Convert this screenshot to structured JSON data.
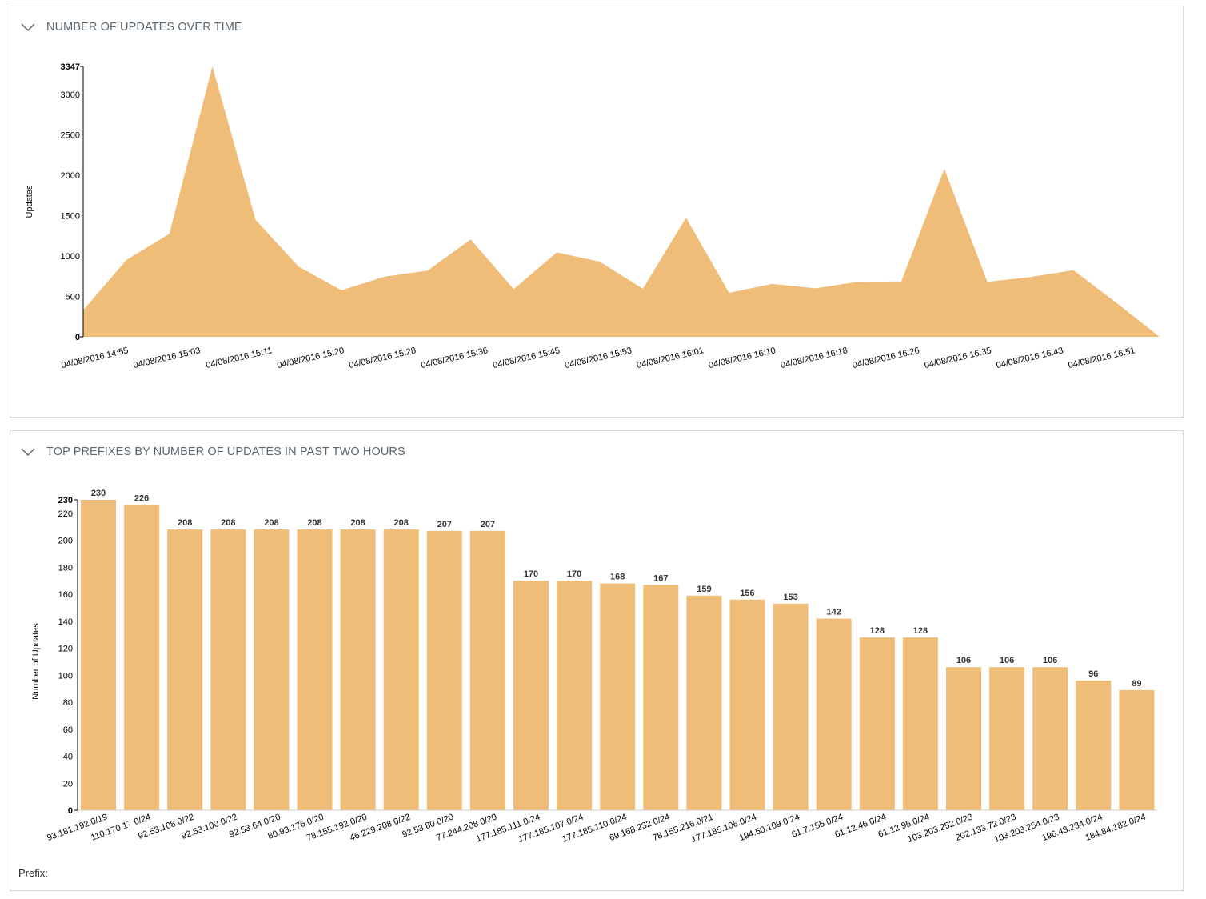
{
  "panels": [
    {
      "title": "NUMBER OF UPDATES OVER TIME",
      "chevron_icon": "chevron-down-icon"
    },
    {
      "title": "TOP PREFIXES BY NUMBER OF UPDATES IN PAST TWO HOURS",
      "chevron_icon": "chevron-down-icon",
      "footer_label": "Prefix:"
    }
  ],
  "colors": {
    "fill": "#efbd78",
    "axis": "#000000",
    "title": "#5b6770"
  },
  "chart_data": [
    {
      "type": "area",
      "title": "",
      "ylabel": "Updates",
      "xlabel": "",
      "ylim": [
        0,
        3347
      ],
      "y_ticks": [
        0,
        500,
        1000,
        1500,
        2000,
        2500,
        3000
      ],
      "y_max_label": "3347",
      "x_tick_labels": [
        "04/08/2016 14:55",
        "04/08/2016 15:03",
        "04/08/2016 15:11",
        "04/08/2016 15:20",
        "04/08/2016 15:28",
        "04/08/2016 15:36",
        "04/08/2016 15:45",
        "04/08/2016 15:53",
        "04/08/2016 16:01",
        "04/08/2016 16:10",
        "04/08/2016 16:18",
        "04/08/2016 16:26",
        "04/08/2016 16:35",
        "04/08/2016 16:43",
        "04/08/2016 16:51"
      ],
      "series": [
        {
          "values": [
            330,
            950,
            1275,
            3347,
            1450,
            870,
            575,
            745,
            820,
            1205,
            590,
            1045,
            930,
            595,
            1475,
            545,
            655,
            600,
            680,
            685,
            2080,
            680,
            740,
            825,
            420,
            0
          ]
        }
      ]
    },
    {
      "type": "bar",
      "title": "",
      "ylabel": "Number of Updates",
      "xlabel": "Prefix:",
      "ylim": [
        0,
        230
      ],
      "y_ticks": [
        0,
        20,
        40,
        60,
        80,
        100,
        120,
        140,
        160,
        180,
        200,
        220
      ],
      "y_max_label": "230",
      "categories": [
        "93.181.192.0/19",
        "110.170.17.0/24",
        "92.53.108.0/22",
        "92.53.100.0/22",
        "92.53.64.0/20",
        "80.93.176.0/20",
        "78.155.192.0/20",
        "46.229.208.0/22",
        "92.53.80.0/20",
        "77.244.208.0/20",
        "177.185.111.0/24",
        "177.185.107.0/24",
        "177.185.110.0/24",
        "69.168.232.0/24",
        "78.155.216.0/21",
        "177.185.106.0/24",
        "194.50.109.0/24",
        "61.7.155.0/24",
        "61.12.46.0/24",
        "61.12.95.0/24",
        "103.203.252.0/23",
        "202.133.72.0/23",
        "103.203.254.0/23",
        "196.43.234.0/24",
        "184.84.182.0/24"
      ],
      "values": [
        230,
        226,
        208,
        208,
        208,
        208,
        208,
        208,
        207,
        207,
        170,
        170,
        168,
        167,
        159,
        156,
        153,
        142,
        128,
        128,
        106,
        106,
        106,
        96,
        89
      ]
    }
  ]
}
